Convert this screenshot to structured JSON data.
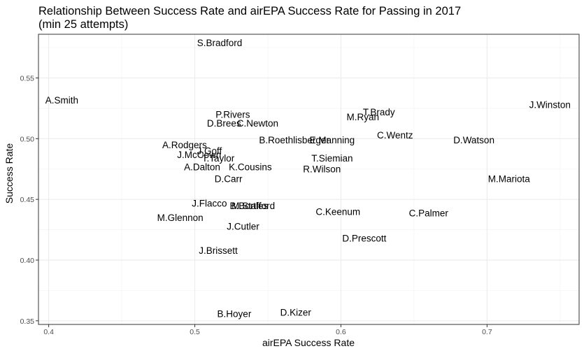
{
  "chart_data": {
    "type": "scatter",
    "title": "Relationship Between Success Rate and airEPA Success Rate for Passing in 2017",
    "subtitle": "(min 25 attempts)",
    "xlabel": "airEPA Success Rate",
    "ylabel": "Success Rate",
    "xlim": [
      0.393,
      0.763
    ],
    "ylim": [
      0.347,
      0.586
    ],
    "x_ticks": [
      0.4,
      0.5,
      0.6,
      0.7
    ],
    "x_tick_labels": [
      "0.4",
      "0.5",
      "0.6",
      "0.7"
    ],
    "y_ticks": [
      0.35,
      0.4,
      0.45,
      0.5,
      0.55
    ],
    "y_tick_labels": [
      "0.35",
      "0.40",
      "0.45",
      "0.50",
      "0.55"
    ],
    "grid": true,
    "legend": "none",
    "colors": {
      "background": "#ffffff",
      "grid_major": "#ebebeb",
      "grid_minor": "#f5f5f5",
      "border": "#333333",
      "text": "#000000",
      "tick_text": "#4d4d4d"
    },
    "points": [
      {
        "label": "S.Bradford",
        "x": 0.517,
        "y": 0.579
      },
      {
        "label": "A.Smith",
        "x": 0.409,
        "y": 0.532
      },
      {
        "label": "J.Winston",
        "x": 0.743,
        "y": 0.528
      },
      {
        "label": "T.Brady",
        "x": 0.626,
        "y": 0.522
      },
      {
        "label": "P.Rivers",
        "x": 0.526,
        "y": 0.52
      },
      {
        "label": "M.Ryan",
        "x": 0.615,
        "y": 0.518
      },
      {
        "label": "D.Brees",
        "x": 0.52,
        "y": 0.513
      },
      {
        "label": "C.Newton",
        "x": 0.543,
        "y": 0.513
      },
      {
        "label": "C.Wentz",
        "x": 0.637,
        "y": 0.503
      },
      {
        "label": "B.Roethlisberger",
        "x": 0.568,
        "y": 0.499
      },
      {
        "label": "E.Manning",
        "x": 0.594,
        "y": 0.499
      },
      {
        "label": "D.Watson",
        "x": 0.691,
        "y": 0.499
      },
      {
        "label": "A.Rodgers",
        "x": 0.493,
        "y": 0.495
      },
      {
        "label": "J.Goff",
        "x": 0.51,
        "y": 0.49
      },
      {
        "label": "J.McCown",
        "x": 0.503,
        "y": 0.487
      },
      {
        "label": "T.Taylor",
        "x": 0.516,
        "y": 0.484
      },
      {
        "label": "T.Siemian",
        "x": 0.594,
        "y": 0.484
      },
      {
        "label": "A.Dalton",
        "x": 0.505,
        "y": 0.477
      },
      {
        "label": "K.Cousins",
        "x": 0.538,
        "y": 0.477
      },
      {
        "label": "R.Wilson",
        "x": 0.587,
        "y": 0.475
      },
      {
        "label": "D.Carr",
        "x": 0.523,
        "y": 0.467
      },
      {
        "label": "M.Mariota",
        "x": 0.715,
        "y": 0.467
      },
      {
        "label": "J.Flacco",
        "x": 0.51,
        "y": 0.447
      },
      {
        "label": "M.Stafford",
        "x": 0.54,
        "y": 0.445
      },
      {
        "label": "B.Bortles",
        "x": 0.537,
        "y": 0.445
      },
      {
        "label": "C.Keenum",
        "x": 0.598,
        "y": 0.44
      },
      {
        "label": "C.Palmer",
        "x": 0.66,
        "y": 0.439
      },
      {
        "label": "M.Glennon",
        "x": 0.49,
        "y": 0.435
      },
      {
        "label": "J.Cutler",
        "x": 0.533,
        "y": 0.428
      },
      {
        "label": "D.Prescott",
        "x": 0.616,
        "y": 0.418
      },
      {
        "label": "J.Brissett",
        "x": 0.516,
        "y": 0.408
      },
      {
        "label": "B.Hoyer",
        "x": 0.527,
        "y": 0.356
      },
      {
        "label": "D.Kizer",
        "x": 0.569,
        "y": 0.357
      }
    ]
  }
}
